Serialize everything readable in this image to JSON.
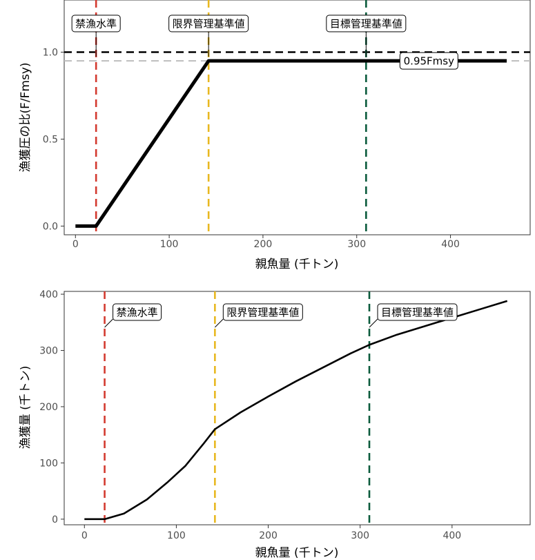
{
  "colors": {
    "prohibition": "#d33a2f",
    "limit": "#e8b820",
    "target": "#0b5b3c",
    "reference": "#000000",
    "fmsy_ref": "#bdbdbd",
    "curve": "#000000"
  },
  "chart_data": [
    {
      "id": "hcr",
      "type": "line",
      "xlabel": "親魚量 (千トン)",
      "ylabel": "漁獲圧の比(F/Fmsy)",
      "xlim": [
        -12,
        485
      ],
      "ylim": [
        -0.05,
        1.3
      ],
      "xticks": [
        0,
        100,
        200,
        300,
        400
      ],
      "yticks": [
        0.0,
        0.5,
        1.0
      ],
      "ytick_labels": [
        "0.0",
        "0.5",
        "1.0"
      ],
      "grid": false,
      "series": [
        {
          "x": [
            0,
            22,
            142,
            460
          ],
          "y": [
            0,
            0,
            0.95,
            0.95
          ]
        }
      ],
      "hlines": [
        {
          "y": 1.0,
          "style": "dashed",
          "color": "reference"
        },
        {
          "y": 0.95,
          "style": "dashed",
          "color": "fmsy_ref",
          "label": "0.95Fmsy",
          "label_x": 377
        }
      ],
      "vlines": [
        {
          "x": 22,
          "label": "禁漁水準",
          "color": "prohibition"
        },
        {
          "x": 142,
          "label": "限界管理基準値",
          "color": "limit"
        },
        {
          "x": 310,
          "label": "目標管理基準値",
          "color": "target"
        }
      ]
    },
    {
      "id": "catch",
      "type": "line",
      "xlabel": "親魚量 (千トン)",
      "ylabel": "漁獲量 (千トン)",
      "xlim": [
        -22,
        485
      ],
      "ylim": [
        -10,
        405
      ],
      "xticks": [
        0,
        100,
        200,
        300,
        400
      ],
      "yticks": [
        0,
        100,
        200,
        300,
        400
      ],
      "ytick_labels": [
        "0",
        "100",
        "200",
        "300",
        "400"
      ],
      "grid": false,
      "series": [
        {
          "x": [
            0,
            22,
            43,
            68,
            90,
            110,
            130,
            142,
            170,
            200,
            230,
            260,
            290,
            310,
            340,
            370,
            400,
            430,
            460
          ],
          "y": [
            0,
            0,
            10,
            35,
            65,
            95,
            135,
            160,
            190,
            218,
            245,
            270,
            295,
            310,
            328,
            343,
            358,
            373,
            388
          ]
        }
      ],
      "vlines": [
        {
          "x": 22,
          "label": "禁漁水準",
          "color": "prohibition"
        },
        {
          "x": 142,
          "label": "限界管理基準値",
          "color": "limit"
        },
        {
          "x": 310,
          "label": "目標管理基準値",
          "color": "target"
        }
      ]
    }
  ]
}
